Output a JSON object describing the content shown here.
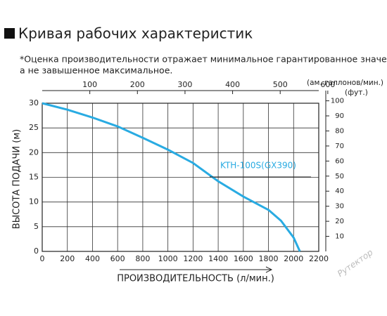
{
  "chart_data": {
    "type": "line",
    "title": "Кривая рабочих характеристик",
    "note": [
      "*Оценка производительности отражает минимальное гарантированное значение,",
      "а не завышенное максимальное."
    ],
    "xlabel": "ПРОИЗВОДИТЕЛЬНОСТЬ (л/мин.)",
    "ylabel": "ВЫСОТА ПОДАЧИ (м)",
    "x2label": "(ам. галлонов/мин.)",
    "y2label": "(фут.)",
    "watermark": "Рутектор",
    "grid": true,
    "x": [
      0,
      200,
      400,
      600,
      800,
      1000,
      1200,
      1400,
      1600,
      1800,
      1900,
      2000,
      2050
    ],
    "series": [
      {
        "name": "KTH-100S(GX390)",
        "color": "#29abe2",
        "values": [
          30,
          28.7,
          27.1,
          25.3,
          23,
          20.6,
          17.9,
          14.2,
          11.1,
          8.4,
          6.2,
          2.8,
          0
        ]
      }
    ],
    "xlim": [
      0,
      2200
    ],
    "xticks": [
      0,
      200,
      400,
      600,
      800,
      1000,
      1200,
      1400,
      1600,
      1800,
      2000,
      2200
    ],
    "ylim": [
      0,
      30
    ],
    "yticks": [
      0,
      5,
      10,
      15,
      20,
      25,
      30
    ],
    "x2lim": [
      0,
      581
    ],
    "x2ticks": [
      100,
      200,
      300,
      400,
      500,
      600
    ],
    "y2lim": [
      0,
      98.4
    ],
    "y2ticks": [
      10,
      20,
      30,
      40,
      50,
      60,
      70,
      80,
      90,
      100
    ]
  }
}
